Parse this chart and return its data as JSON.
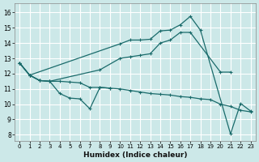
{
  "bg_color": "#cce8e8",
  "grid_color": "#ffffff",
  "line_color": "#1a6b6b",
  "xlabel": "Humidex (Indice chaleur)",
  "xlim": [
    -0.5,
    23.5
  ],
  "ylim": [
    7.6,
    16.6
  ],
  "yticks": [
    8,
    9,
    10,
    11,
    12,
    13,
    14,
    15,
    16
  ],
  "xticks": [
    0,
    1,
    2,
    3,
    4,
    5,
    6,
    7,
    8,
    9,
    10,
    11,
    12,
    13,
    14,
    15,
    16,
    17,
    18,
    19,
    20,
    21,
    22,
    23
  ],
  "lines": [
    {
      "x": [
        0,
        1,
        2,
        3,
        4,
        5,
        6,
        7,
        8,
        9
      ],
      "y": [
        12.7,
        11.9,
        11.55,
        11.5,
        10.7,
        10.4,
        10.35,
        9.7,
        11.1,
        11.05
      ]
    },
    {
      "x": [
        0,
        1,
        2,
        3,
        8,
        10,
        11,
        12,
        13,
        14,
        15,
        16,
        17,
        20,
        21
      ],
      "y": [
        12.7,
        11.9,
        11.55,
        11.5,
        12.25,
        13.0,
        13.1,
        13.2,
        13.3,
        14.0,
        14.2,
        14.7,
        14.7,
        12.1,
        12.1
      ]
    },
    {
      "x": [
        0,
        1,
        2,
        3,
        4,
        5,
        6,
        7,
        8,
        9,
        10,
        11,
        12,
        13,
        14,
        15,
        16,
        17,
        18,
        19,
        20,
        21,
        22,
        23
      ],
      "y": [
        12.7,
        11.9,
        11.55,
        11.5,
        11.5,
        11.45,
        11.4,
        11.1,
        11.1,
        11.05,
        11.0,
        10.9,
        10.8,
        10.7,
        10.65,
        10.6,
        10.5,
        10.45,
        10.35,
        10.3,
        10.0,
        9.85,
        9.6,
        9.5
      ]
    },
    {
      "x": [
        0,
        1,
        10,
        11,
        12,
        13,
        14,
        15,
        16,
        17,
        18,
        21,
        22,
        23
      ],
      "y": [
        12.7,
        11.9,
        13.95,
        14.2,
        14.2,
        14.25,
        14.8,
        14.85,
        15.2,
        15.75,
        14.85,
        8.05,
        10.05,
        9.55
      ]
    }
  ]
}
